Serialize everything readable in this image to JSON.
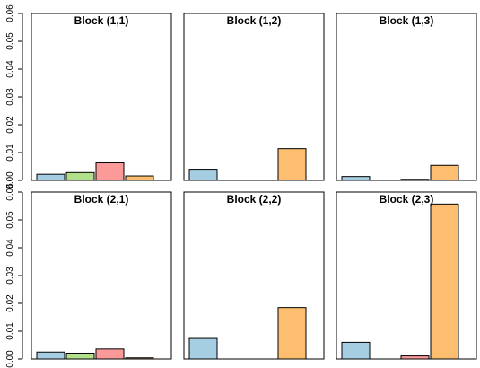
{
  "chart_data": {
    "type": "bar",
    "layout": "2x3 grid of panels, shared y axis per row, y axis ticks on the left of each row",
    "ylim": [
      0,
      0.06
    ],
    "yticks": [
      "0.00",
      "0.01",
      "0.02",
      "0.03",
      "0.04",
      "0.05",
      "0.06"
    ],
    "grid": false,
    "series_colors": [
      "#a6cee3",
      "#b2df8a",
      "#fb9a99",
      "#fdbf6f"
    ],
    "panels": [
      {
        "title": "Block (1,1)",
        "values": [
          0.0022,
          0.0028,
          0.0063,
          0.0016
        ]
      },
      {
        "title": "Block (1,2)",
        "values": [
          0.004,
          0.0,
          0.0,
          0.0114
        ]
      },
      {
        "title": "Block (1,3)",
        "values": [
          0.0014,
          0.0,
          0.0004,
          0.0054
        ]
      },
      {
        "title": "Block (2,1)",
        "values": [
          0.0025,
          0.0021,
          0.0036,
          0.0004
        ]
      },
      {
        "title": "Block (2,2)",
        "values": [
          0.0074,
          0.0,
          0.0,
          0.0185
        ]
      },
      {
        "title": "Block (2,3)",
        "values": [
          0.006,
          0.0,
          0.0011,
          0.0557
        ]
      }
    ]
  }
}
